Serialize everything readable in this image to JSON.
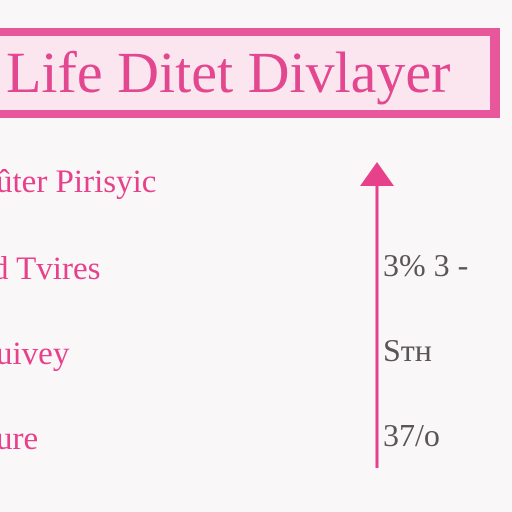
{
  "header": {
    "title": "Life Ditet Divlayer"
  },
  "rows": [
    {
      "label": "ûter Pirisyic"
    },
    {
      "label": "d Tvires",
      "value": "3% 3 -"
    },
    {
      "label": "uivey",
      "value": "Sтн"
    },
    {
      "label": "ure",
      "value": "37/o"
    }
  ]
}
